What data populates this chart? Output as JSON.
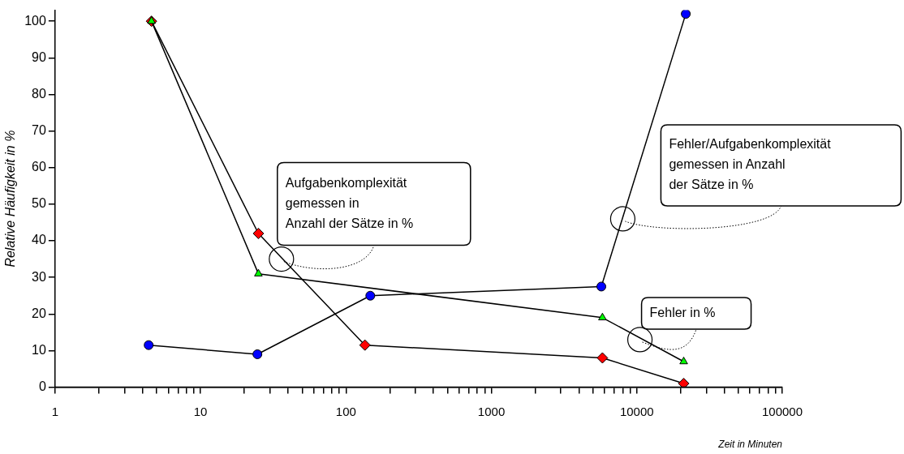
{
  "chart_data": {
    "type": "line",
    "xlabel": "Zeit in Minuten",
    "ylabel": "Relative Häufigkeit in %",
    "log": "x",
    "xlim": [
      1,
      100000
    ],
    "xticks": [
      1,
      {
        "value": 2,
        "label": null
      },
      {
        "value": 3,
        "label": null
      },
      {
        "value": 4,
        "label": null
      },
      {
        "value": 5,
        "label": null
      },
      {
        "value": 6,
        "label": null
      },
      {
        "value": 7,
        "label": null
      },
      {
        "value": 8,
        "label": null
      },
      {
        "value": 9,
        "label": null
      },
      10,
      {
        "value": 20,
        "label": null
      },
      {
        "value": 30,
        "label": null
      },
      {
        "value": 40,
        "label": null
      },
      {
        "value": 50,
        "label": null
      },
      {
        "value": 60,
        "label": null
      },
      {
        "value": 70,
        "label": null
      },
      {
        "value": 80,
        "label": null
      },
      {
        "value": 90,
        "label": null
      },
      100,
      {
        "value": 200,
        "label": null
      },
      {
        "value": 300,
        "label": null
      },
      {
        "value": 400,
        "label": null
      },
      {
        "value": 500,
        "label": null
      },
      {
        "value": 600,
        "label": null
      },
      {
        "value": 700,
        "label": null
      },
      {
        "value": 800,
        "label": null
      },
      {
        "value": 900,
        "label": null
      },
      1000,
      {
        "value": 2000,
        "label": null
      },
      {
        "value": 3000,
        "label": null
      },
      {
        "value": 4000,
        "label": null
      },
      {
        "value": 5000,
        "label": null
      },
      {
        "value": 6000,
        "label": null
      },
      {
        "value": 7000,
        "label": null
      },
      {
        "value": 8000,
        "label": null
      },
      {
        "value": 9000,
        "label": null
      },
      10000,
      {
        "value": 20000,
        "label": null
      },
      {
        "value": 30000,
        "label": null
      },
      {
        "value": 40000,
        "label": null
      },
      {
        "value": 50000,
        "label": null
      },
      {
        "value": 60000,
        "label": null
      },
      {
        "value": 70000,
        "label": null
      },
      {
        "value": 80000,
        "label": null
      },
      {
        "value": 90000,
        "label": null
      },
      100000
    ],
    "ylim": [
      0,
      103
    ],
    "yticks": [
      0,
      10,
      20,
      30,
      40,
      50,
      60,
      70,
      80,
      90,
      100
    ],
    "grid": false,
    "legend": false,
    "series": [
      {
        "color": "#0000ff",
        "marker": "circle",
        "x": [
          4.4,
          24.6,
          147,
          5700,
          21700
        ],
        "values": [
          11.5,
          9,
          25,
          27.5,
          102
        ]
      },
      {
        "color": "#00ff00",
        "marker": "triangle",
        "x": [
          4.6,
          25,
          5800,
          21000
        ],
        "values": [
          100,
          31,
          19,
          7
        ]
      },
      {
        "color": "#ff0000",
        "marker": "diamond",
        "x": [
          4.6,
          25,
          135,
          5800,
          21000
        ],
        "values": [
          100,
          42,
          11.5,
          8,
          1
        ]
      }
    ],
    "annotations": [
      {
        "text": "Aufgabenkomplexität\ngemessen in\nAnzahl der Sätze in %",
        "x": 36,
        "y": 35
      },
      {
        "text": "Fehler/Aufgabenkomplexität\ngemessen in Anzahl\nder Sätze in %",
        "x": 8000,
        "y": 46
      },
      {
        "text": "Fehler in %",
        "x": 10500,
        "y": 13
      }
    ]
  }
}
